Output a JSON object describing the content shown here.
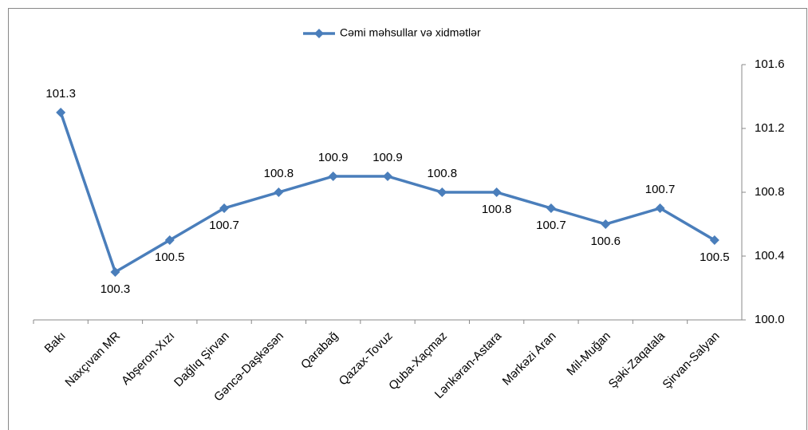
{
  "chart_data": {
    "type": "line",
    "categories": [
      "Bakı",
      "Naxçıvan MR",
      "Abşeron-Xızı",
      "Dağlıq Şirvan",
      "Gəncə-Daşkəsən",
      "Qarabağ",
      "Qazax-Tovuz",
      "Quba-Xaçmaz",
      "Lənkəran-Astara",
      "Mərkəzi Aran",
      "Mil-Muğan",
      "Şəki-Zaqatala",
      "Şirvan-Salyan"
    ],
    "series": [
      {
        "name": "Cəmi məhsullar və xidmətlər",
        "color": "#4a7ebb",
        "values": [
          101.3,
          100.3,
          100.5,
          100.7,
          100.8,
          100.9,
          100.9,
          100.8,
          100.8,
          100.7,
          100.6,
          100.7,
          100.5
        ]
      }
    ],
    "ylim": [
      100,
      101.6
    ],
    "yticks": [
      {
        "value": 100,
        "label": "100.0"
      },
      100.4,
      100.8,
      101.2,
      101.6
    ],
    "y_axis_side": "right",
    "legend": "top"
  }
}
